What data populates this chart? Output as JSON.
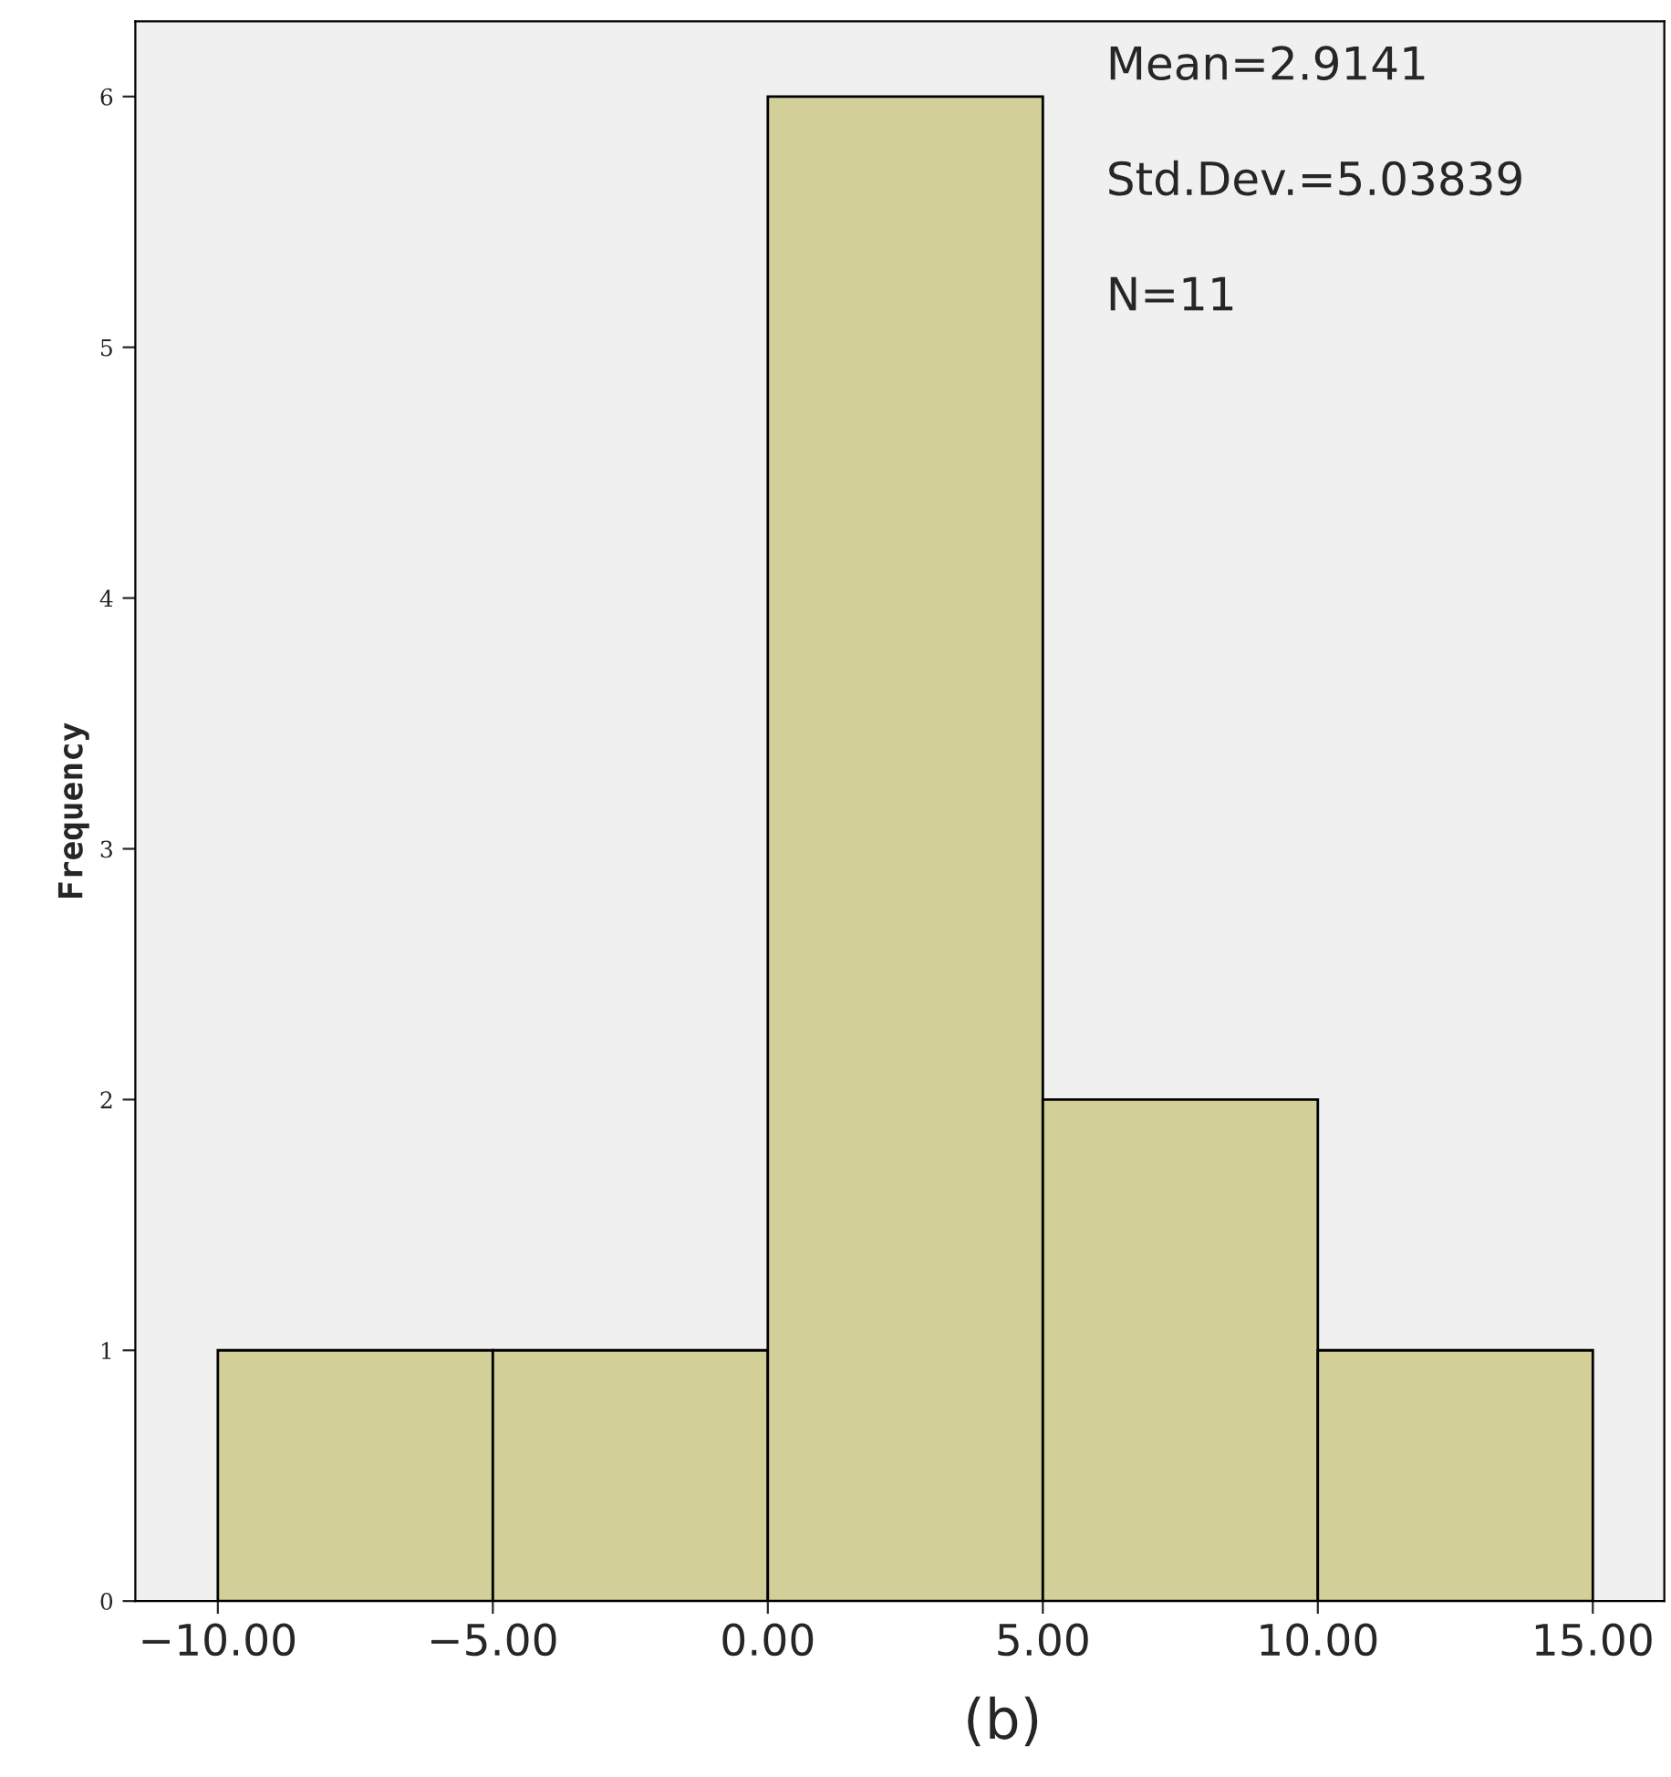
{
  "chart_data": {
    "type": "histogram",
    "ylabel": "Frequency",
    "bins": [
      -10,
      -5,
      0,
      5,
      10,
      15
    ],
    "values": [
      1,
      1,
      6,
      2,
      1
    ],
    "color": "#d3cf99",
    "xlim": [
      -11.5,
      16.3
    ],
    "ylim": [
      0,
      6.3
    ],
    "xticks": [
      {
        "value": -10,
        "label": "−10.00"
      },
      {
        "value": -5,
        "label": "−5.00"
      },
      {
        "value": 0,
        "label": "0.00"
      },
      {
        "value": 5,
        "label": "5.00"
      },
      {
        "value": 10,
        "label": "10.00"
      },
      {
        "value": 15,
        "label": "15.00"
      }
    ],
    "yticks": [
      0,
      1,
      2,
      3,
      4,
      5,
      6
    ],
    "annotations": [
      "Mean=2.9141",
      "Std.Dev.=5.03839",
      "N=11",
      "(b)"
    ],
    "grid": false
  }
}
